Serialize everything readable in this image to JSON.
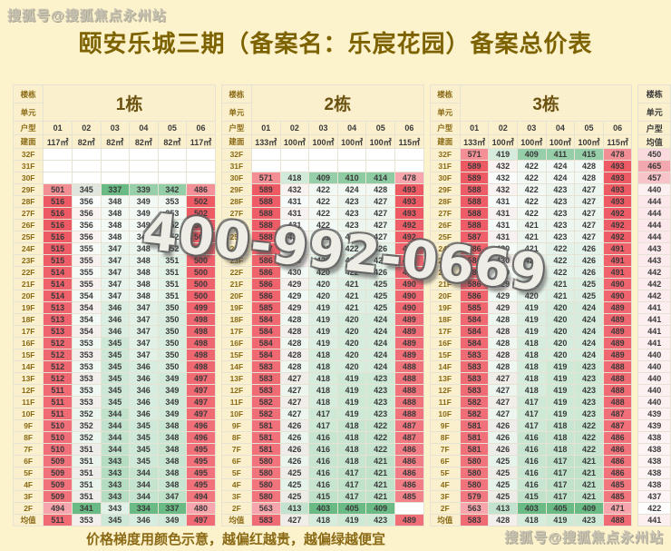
{
  "title": "颐安乐城三期（备案名：乐宸花园）备案总价表",
  "watermarks": {
    "top_left": "搜狐号@搜狐焦点永州站",
    "bottom_right": "搜狐号@搜狐焦点永州站",
    "phone": "400-992-0669"
  },
  "footer_note": "价格梯度用颜色示意，越偏红越贵，越偏绿越便宜",
  "labels": {
    "building": "楼栋",
    "unit": "单元",
    "house_type": "户型",
    "area": "建面",
    "avg": "均值"
  },
  "colors": {
    "page_bg": "#fcf2cc",
    "header_bg": "#fbf0cd",
    "header_text": "#8a6a15",
    "red_max": "#ee5a64",
    "red_min": "#f6a6ac",
    "green_min": "#69ba84",
    "pink_avg": "#f3a7ae"
  },
  "floors": [
    "32F",
    "31F",
    "30F",
    "29F",
    "28F",
    "27F",
    "26F",
    "25F",
    "24F",
    "23F",
    "22F",
    "21F",
    "20F",
    "19F",
    "18F",
    "17F",
    "16F",
    "15F",
    "14F",
    "13F",
    "12F",
    "11F",
    "10F",
    "9F",
    "8F",
    "7F",
    "6F",
    "5F",
    "4F",
    "3F",
    "2F",
    "均值"
  ],
  "buildings": [
    {
      "name": "1栋",
      "units": [
        "01",
        "02",
        "03",
        "04",
        "05",
        "06"
      ],
      "areas": [
        "117㎡",
        "82㎡",
        "82㎡",
        "82㎡",
        "82㎡",
        "117㎡"
      ],
      "rows": [
        [
          null,
          null,
          null,
          null,
          null,
          null
        ],
        [
          null,
          null,
          null,
          null,
          null,
          null
        ],
        [
          null,
          null,
          null,
          null,
          null,
          null
        ],
        [
          501,
          345,
          337,
          339,
          342,
          486
        ],
        [
          516,
          356,
          348,
          349,
          353,
          502
        ],
        [
          516,
          356,
          348,
          349,
          353,
          502
        ],
        [
          516,
          356,
          348,
          349,
          352,
          502
        ],
        [
          516,
          356,
          348,
          349,
          352,
          501
        ],
        [
          515,
          355,
          347,
          348,
          352,
          500
        ],
        [
          515,
          355,
          347,
          348,
          351,
          500
        ],
        [
          514,
          355,
          347,
          348,
          351,
          500
        ],
        [
          514,
          355,
          347,
          348,
          351,
          500
        ],
        [
          514,
          354,
          347,
          348,
          351,
          500
        ],
        [
          513,
          354,
          346,
          347,
          350,
          499
        ],
        [
          513,
          354,
          346,
          347,
          350,
          498
        ],
        [
          513,
          354,
          346,
          347,
          350,
          498
        ],
        [
          512,
          353,
          345,
          347,
          350,
          498
        ],
        [
          512,
          353,
          345,
          347,
          350,
          498
        ],
        [
          512,
          353,
          345,
          346,
          350,
          498
        ],
        [
          512,
          353,
          345,
          346,
          349,
          497
        ],
        [
          511,
          353,
          345,
          346,
          349,
          497
        ],
        [
          511,
          353,
          345,
          346,
          349,
          497
        ],
        [
          511,
          352,
          344,
          346,
          349,
          497
        ],
        [
          510,
          352,
          344,
          345,
          348,
          496
        ],
        [
          510,
          352,
          344,
          345,
          348,
          496
        ],
        [
          510,
          351,
          344,
          345,
          348,
          495
        ],
        [
          509,
          351,
          343,
          345,
          348,
          495
        ],
        [
          509,
          351,
          343,
          344,
          348,
          495
        ],
        [
          509,
          351,
          343,
          344,
          348,
          495
        ],
        [
          509,
          351,
          343,
          344,
          347,
          494
        ],
        [
          494,
          341,
          343,
          334,
          337,
          480
        ],
        [
          511,
          353,
          345,
          346,
          349,
          497
        ]
      ]
    },
    {
      "name": "2栋",
      "units": [
        "01",
        "02",
        "03",
        "04",
        "05",
        "06"
      ],
      "areas": [
        "133㎡",
        "100㎡",
        "100㎡",
        "100㎡",
        "100㎡",
        "115㎡"
      ],
      "rows": [
        [
          null,
          null,
          null,
          null,
          null,
          null
        ],
        [
          null,
          null,
          null,
          null,
          null,
          null
        ],
        [
          571,
          418,
          409,
          410,
          414,
          478
        ],
        [
          589,
          432,
          422,
          424,
          428,
          493
        ],
        [
          588,
          431,
          422,
          423,
          427,
          493
        ],
        [
          588,
          431,
          422,
          423,
          427,
          493
        ],
        [
          588,
          431,
          422,
          423,
          427,
          492
        ],
        [
          588,
          431,
          421,
          423,
          427,
          492
        ],
        [
          587,
          430,
          421,
          422,
          426,
          491
        ],
        [
          586,
          430,
          420,
          422,
          426,
          491
        ],
        [
          586,
          430,
          420,
          422,
          426,
          491
        ],
        [
          586,
          429,
          420,
          421,
          425,
          490
        ],
        [
          586,
          429,
          420,
          421,
          425,
          490
        ],
        [
          585,
          429,
          419,
          421,
          425,
          490
        ],
        [
          584,
          428,
          419,
          420,
          424,
          489
        ],
        [
          584,
          428,
          419,
          420,
          424,
          489
        ],
        [
          584,
          428,
          419,
          420,
          424,
          489
        ],
        [
          584,
          428,
          418,
          420,
          424,
          489
        ],
        [
          583,
          428,
          418,
          420,
          424,
          488
        ],
        [
          583,
          427,
          418,
          419,
          423,
          488
        ],
        [
          583,
          427,
          418,
          419,
          423,
          488
        ],
        [
          582,
          427,
          418,
          419,
          423,
          488
        ],
        [
          582,
          427,
          417,
          419,
          423,
          488
        ],
        [
          581,
          426,
          417,
          418,
          422,
          487
        ],
        [
          581,
          426,
          416,
          418,
          422,
          487
        ],
        [
          581,
          426,
          416,
          418,
          422,
          486
        ],
        [
          580,
          426,
          416,
          418,
          421,
          486
        ],
        [
          580,
          425,
          416,
          417,
          421,
          486
        ],
        [
          580,
          425,
          416,
          417,
          421,
          486
        ],
        [
          580,
          425,
          415,
          417,
          421,
          485
        ],
        [
          563,
          413,
          403,
          405,
          409,
          null
        ],
        [
          583,
          427,
          418,
          419,
          423,
          489
        ]
      ]
    },
    {
      "name": "3栋",
      "units": [
        "01",
        "02",
        "03",
        "04",
        "05",
        "06"
      ],
      "areas": [
        "133㎡",
        "100㎡",
        "100㎡",
        "100㎡",
        "100㎡",
        "115㎡"
      ],
      "rows": [
        [
          571,
          419,
          409,
          411,
          415,
          478
        ],
        [
          589,
          432,
          422,
          424,
          428,
          493
        ],
        [
          589,
          432,
          422,
          424,
          428,
          493
        ],
        [
          588,
          432,
          422,
          423,
          427,
          493
        ],
        [
          588,
          431,
          422,
          423,
          427,
          493
        ],
        [
          588,
          431,
          422,
          423,
          427,
          492
        ],
        [
          588,
          431,
          421,
          423,
          427,
          492
        ],
        [
          587,
          431,
          421,
          423,
          427,
          492
        ],
        [
          586,
          430,
          421,
          422,
          426,
          491
        ],
        [
          586,
          430,
          420,
          422,
          426,
          491
        ],
        [
          586,
          430,
          420,
          422,
          426,
          491
        ],
        [
          586,
          429,
          420,
          421,
          425,
          490
        ],
        [
          586,
          429,
          420,
          421,
          425,
          490
        ],
        [
          585,
          429,
          419,
          420,
          424,
          489
        ],
        [
          584,
          428,
          419,
          420,
          424,
          489
        ],
        [
          584,
          428,
          419,
          420,
          424,
          489
        ],
        [
          584,
          428,
          418,
          420,
          424,
          489
        ],
        [
          583,
          428,
          418,
          420,
          424,
          489
        ],
        [
          583,
          428,
          418,
          419,
          423,
          488
        ],
        [
          583,
          427,
          418,
          419,
          423,
          488
        ],
        [
          583,
          427,
          418,
          419,
          423,
          488
        ],
        [
          582,
          427,
          417,
          419,
          423,
          488
        ],
        [
          582,
          427,
          417,
          419,
          423,
          487
        ],
        [
          581,
          426,
          417,
          418,
          422,
          487
        ],
        [
          581,
          426,
          416,
          418,
          422,
          486
        ],
        [
          581,
          426,
          416,
          418,
          422,
          486
        ],
        [
          580,
          425,
          416,
          417,
          421,
          486
        ],
        [
          580,
          425,
          416,
          417,
          421,
          486
        ],
        [
          580,
          425,
          416,
          417,
          421,
          485
        ],
        [
          579,
          425,
          415,
          417,
          421,
          485
        ],
        [
          563,
          413,
          403,
          405,
          409,
          471
        ],
        [
          583,
          428,
          418,
          419,
          423,
          488
        ]
      ]
    }
  ],
  "overall_avg_column": {
    "header": [
      "楼栋",
      "单元",
      "户型",
      "均值"
    ],
    "values": [
      450,
      465,
      457,
      440,
      444,
      444,
      444,
      444,
      443,
      443,
      442,
      442,
      442,
      441,
      441,
      441,
      441,
      440,
      440,
      440,
      440,
      440,
      439,
      439,
      438,
      438,
      438,
      438,
      438,
      437,
      422,
      441
    ]
  }
}
